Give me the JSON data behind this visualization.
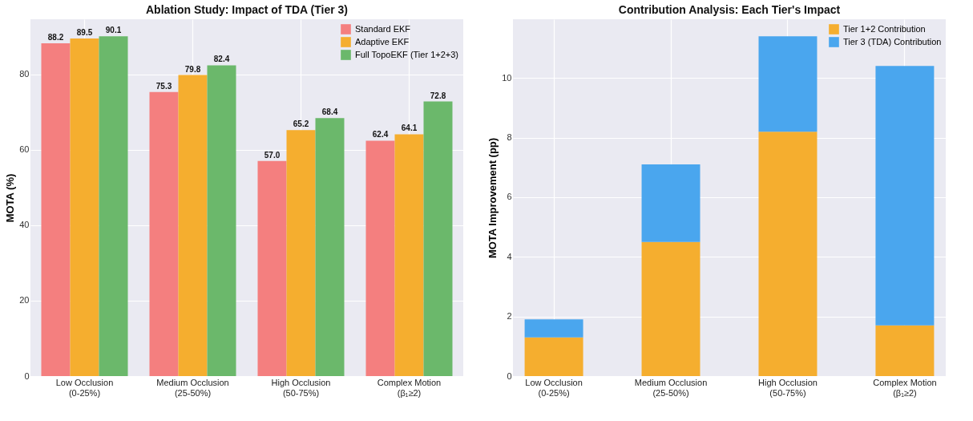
{
  "chart_data": [
    {
      "type": "bar",
      "title": "Ablation Study: Impact of TDA (Tier 3)",
      "ylabel": "MOTA (%)",
      "categories": [
        "Low Occlusion\n(0-25%)",
        "Medium Occlusion\n(25-50%)",
        "High Occlusion\n(50-75%)",
        "Complex Motion\n(β₁≥2)"
      ],
      "series": [
        {
          "name": "Standard EKF",
          "color": "#f47f7f",
          "values": [
            88.2,
            75.3,
            57.0,
            62.4
          ],
          "value_labels": [
            "88.2",
            "75.3",
            "57.0",
            "62.4"
          ]
        },
        {
          "name": "Adaptive EKF",
          "color": "#f5ae2f",
          "values": [
            89.5,
            79.8,
            65.2,
            64.1
          ],
          "value_labels": [
            "89.5",
            "79.8",
            "65.2",
            "64.1"
          ]
        },
        {
          "name": "Full TopoEKF (Tier 1+2+3)",
          "color": "#6bb86b",
          "values": [
            90.1,
            82.4,
            68.4,
            72.8
          ],
          "value_labels": [
            "90.1",
            "82.4",
            "68.4",
            "72.8"
          ]
        }
      ],
      "ylim": [
        0,
        94.6
      ],
      "yticks": [
        0,
        20,
        40,
        60,
        80
      ],
      "grid": true,
      "legend": "top right"
    },
    {
      "type": "bar",
      "title": "Contribution Analysis: Each Tier's Impact",
      "ylabel": "MOTA Improvement (pp)",
      "categories": [
        "Low Occlusion\n(0-25%)",
        "Medium Occlusion\n(25-50%)",
        "High Occlusion\n(50-75%)",
        "Complex Motion\n(β₁≥2)"
      ],
      "stacked": true,
      "series": [
        {
          "name": "Tier 1+2 Contribution",
          "color": "#f5ae2f",
          "values": [
            1.3,
            4.5,
            8.2,
            1.7
          ]
        },
        {
          "name": "Tier 3 (TDA) Contribution",
          "color": "#4aa6ee",
          "values": [
            0.6,
            2.6,
            3.2,
            8.7
          ]
        }
      ],
      "ylim": [
        0,
        11.97
      ],
      "yticks": [
        0,
        2,
        4,
        6,
        8,
        10
      ],
      "grid": true,
      "legend": "top right"
    }
  ]
}
